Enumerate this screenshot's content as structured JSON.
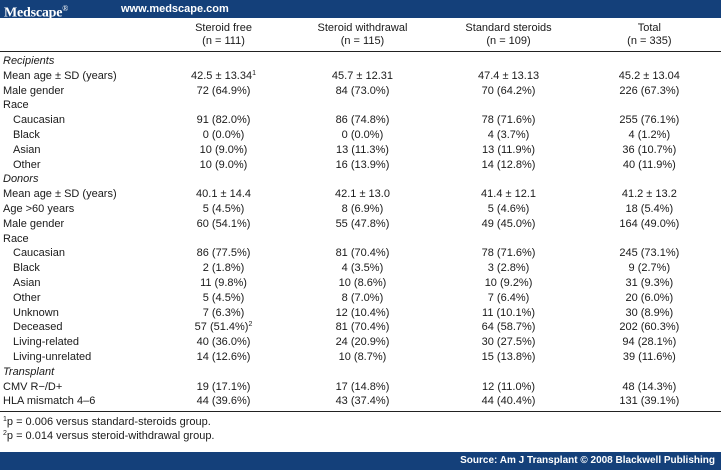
{
  "header": {
    "brand": "Medscape",
    "brand_mark": "®",
    "url": "www.medscape.com"
  },
  "columns": [
    {
      "label": "",
      "n": ""
    },
    {
      "label": "Steroid free",
      "n": "(n = 111)"
    },
    {
      "label": "Steroid withdrawal",
      "n": "(n = 115)"
    },
    {
      "label": "Standard steroids",
      "n": "(n = 109)"
    },
    {
      "label": "Total",
      "n": "(n = 335)"
    }
  ],
  "rows": [
    {
      "label": "Recipients",
      "type": "section",
      "cells": [
        "",
        "",
        "",
        ""
      ]
    },
    {
      "label": "Mean age ± SD (years)",
      "cells": [
        "42.5 ± 13.34",
        "45.7 ± 12.31",
        "47.4 ± 13.13",
        "45.2 ± 13.04"
      ],
      "sups": [
        "1",
        "",
        "",
        ""
      ]
    },
    {
      "label": "Male gender",
      "cells": [
        "72 (64.9%)",
        "84 (73.0%)",
        "70 (64.2%)",
        "226 (67.3%)"
      ]
    },
    {
      "label": "Race",
      "cells": [
        "",
        "",
        "",
        ""
      ]
    },
    {
      "label": "Caucasian",
      "type": "indent",
      "cells": [
        "91 (82.0%)",
        "86 (74.8%)",
        "78 (71.6%)",
        "255 (76.1%)"
      ]
    },
    {
      "label": "Black",
      "type": "indent",
      "cells": [
        "0 (0.0%)",
        "0 (0.0%)",
        "4 (3.7%)",
        "4 (1.2%)"
      ]
    },
    {
      "label": "Asian",
      "type": "indent",
      "cells": [
        "10 (9.0%)",
        "13 (11.3%)",
        "13 (11.9%)",
        "36 (10.7%)"
      ]
    },
    {
      "label": "Other",
      "type": "indent",
      "cells": [
        "10 (9.0%)",
        "16 (13.9%)",
        "14 (12.8%)",
        "40 (11.9%)"
      ]
    },
    {
      "label": "Donors",
      "type": "section",
      "cells": [
        "",
        "",
        "",
        ""
      ]
    },
    {
      "label": "Mean age ± SD (years)",
      "cells": [
        "40.1 ± 14.4",
        "42.1 ± 13.0",
        "41.4 ± 12.1",
        "41.2 ± 13.2"
      ]
    },
    {
      "label": "Age >60 years",
      "cells": [
        "5 (4.5%)",
        "8 (6.9%)",
        "5 (4.6%)",
        "18 (5.4%)"
      ]
    },
    {
      "label": "Male gender",
      "cells": [
        "60 (54.1%)",
        "55 (47.8%)",
        "49 (45.0%)",
        "164 (49.0%)"
      ]
    },
    {
      "label": "Race",
      "cells": [
        "",
        "",
        "",
        ""
      ]
    },
    {
      "label": "Caucasian",
      "type": "indent",
      "cells": [
        "86 (77.5%)",
        "81 (70.4%)",
        "78 (71.6%)",
        "245 (73.1%)"
      ]
    },
    {
      "label": "Black",
      "type": "indent",
      "cells": [
        "2 (1.8%)",
        "4 (3.5%)",
        "3 (2.8%)",
        "9 (2.7%)"
      ]
    },
    {
      "label": "Asian",
      "type": "indent",
      "cells": [
        "11 (9.8%)",
        "10 (8.6%)",
        "10 (9.2%)",
        "31 (9.3%)"
      ]
    },
    {
      "label": "Other",
      "type": "indent",
      "cells": [
        "5 (4.5%)",
        "8 (7.0%)",
        "7 (6.4%)",
        "20 (6.0%)"
      ]
    },
    {
      "label": "Unknown",
      "type": "indent",
      "cells": [
        "7 (6.3%)",
        "12 (10.4%)",
        "11 (10.1%)",
        "30 (8.9%)"
      ]
    },
    {
      "label": "Deceased",
      "type": "indent",
      "cells": [
        "57 (51.4%)",
        "81 (70.4%)",
        "64 (58.7%)",
        "202 (60.3%)"
      ],
      "sups": [
        "2",
        "",
        "",
        ""
      ]
    },
    {
      "label": "Living-related",
      "type": "indent",
      "cells": [
        "40 (36.0%)",
        "24 (20.9%)",
        "30 (27.5%)",
        "94 (28.1%)"
      ]
    },
    {
      "label": "Living-unrelated",
      "type": "indent",
      "cells": [
        "14 (12.6%)",
        "10 (8.7%)",
        "15 (13.8%)",
        "39 (11.6%)"
      ]
    },
    {
      "label": "Transplant",
      "type": "section",
      "cells": [
        "",
        "",
        "",
        ""
      ]
    },
    {
      "label": "CMV R−/D+",
      "cells": [
        "19 (17.1%)",
        "17 (14.8%)",
        "12 (11.0%)",
        "48 (14.3%)"
      ]
    },
    {
      "label": "HLA mismatch 4–6",
      "cells": [
        "44 (39.6%)",
        "43 (37.4%)",
        "44 (40.4%)",
        "131 (39.1%)"
      ]
    }
  ],
  "footnotes": [
    {
      "mark": "1",
      "text": "p = 0.006 versus standard-steroids group."
    },
    {
      "mark": "2",
      "text": "p = 0.014 versus steroid-withdrawal group."
    }
  ],
  "footer": {
    "source": "Source: Am J Transplant © 2008 Blackwell Publishing"
  }
}
